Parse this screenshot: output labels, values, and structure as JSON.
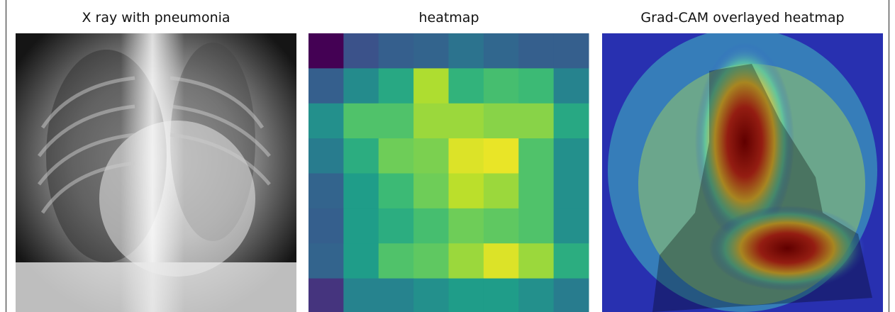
{
  "xray": {
    "title": "X ray with pneumonia"
  },
  "chart_data": {
    "type": "heatmap",
    "title": "heatmap",
    "colormap": "viridis",
    "values": [
      [
        0.0,
        0.25,
        0.3,
        0.32,
        0.38,
        0.33,
        0.3,
        0.3
      ],
      [
        0.3,
        0.48,
        0.6,
        0.88,
        0.65,
        0.7,
        0.68,
        0.45
      ],
      [
        0.5,
        0.72,
        0.72,
        0.85,
        0.85,
        0.82,
        0.82,
        0.6
      ],
      [
        0.42,
        0.62,
        0.78,
        0.8,
        0.95,
        0.97,
        0.72,
        0.5
      ],
      [
        0.32,
        0.55,
        0.68,
        0.78,
        0.9,
        0.85,
        0.72,
        0.5
      ],
      [
        0.3,
        0.55,
        0.62,
        0.7,
        0.78,
        0.75,
        0.72,
        0.5
      ],
      [
        0.32,
        0.55,
        0.72,
        0.75,
        0.85,
        0.95,
        0.85,
        0.62
      ],
      [
        0.15,
        0.45,
        0.45,
        0.5,
        0.55,
        0.55,
        0.5,
        0.42
      ]
    ]
  },
  "overlay": {
    "title": "Grad-CAM overlayed heatmap"
  }
}
